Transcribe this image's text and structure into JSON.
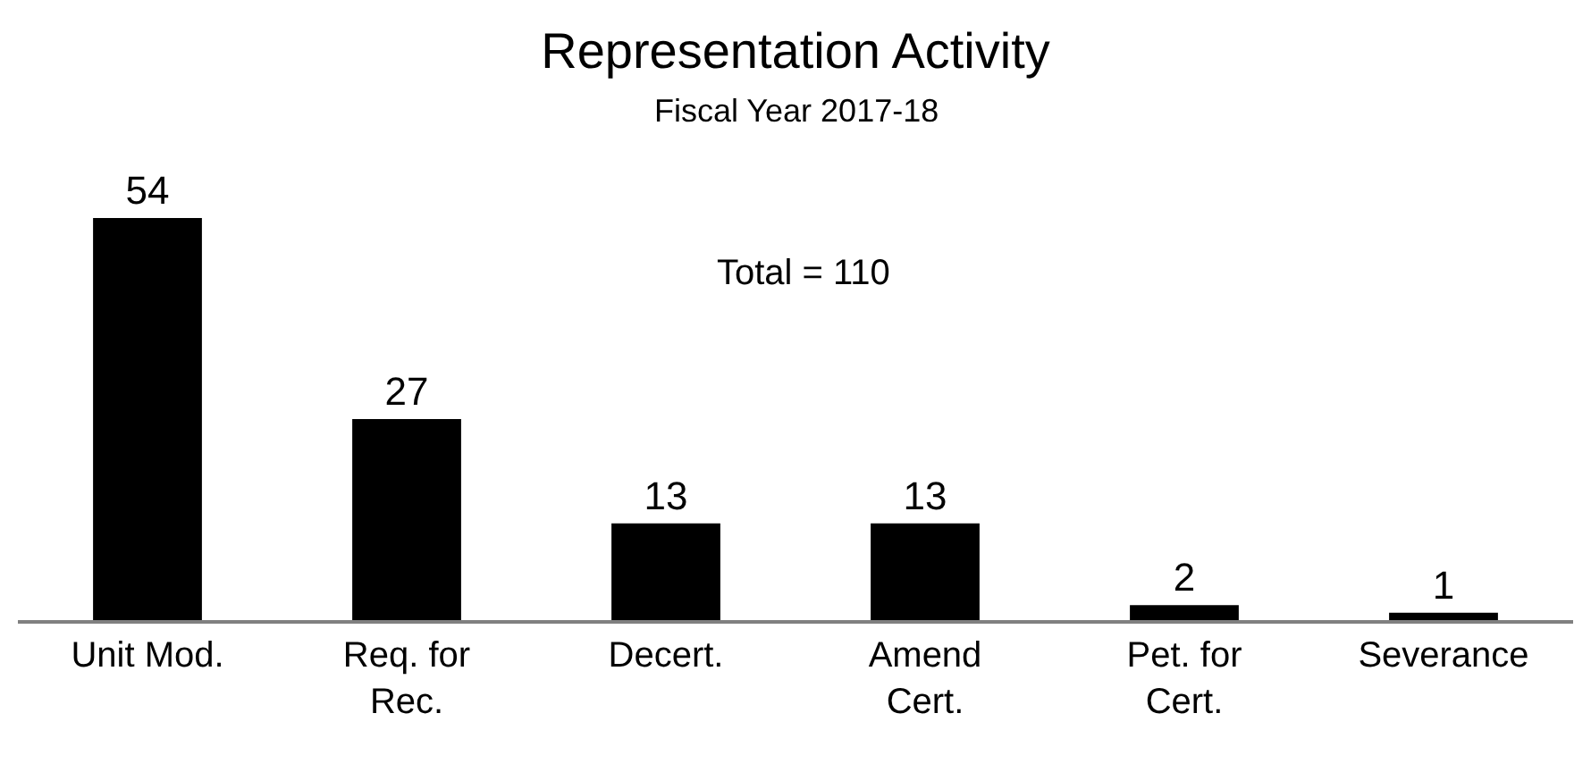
{
  "chart_data": {
    "type": "bar",
    "title": "Representation Activity",
    "subtitle": "Fiscal Year 2017-18",
    "categories": [
      "Unit Mod.",
      "Req. for Rec.",
      "Decert.",
      "Amend Cert.",
      "Pet. for Cert.",
      "Severance"
    ],
    "values": [
      54,
      27,
      13,
      13,
      2,
      1
    ],
    "color": "#000000",
    "data_labels": true,
    "annotations": [
      "Total = 110"
    ]
  }
}
